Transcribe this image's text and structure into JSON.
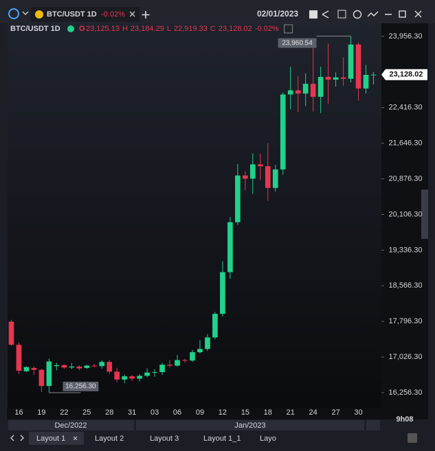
{
  "ui": {
    "tab_title": "BTC/USDT 1D",
    "tab_change": "-0.02%",
    "date": "02/01/2023",
    "time": "9h08",
    "months": [
      "Dec/2022",
      "Jan/2023"
    ],
    "layouts": [
      "Layout 1",
      "Layout 2",
      "Layout 3",
      "Layout 1_1",
      "Layo"
    ]
  },
  "legend": {
    "symbol": "BTC/USDT 1D",
    "o_key": "O",
    "o": "23,125.13",
    "h_key": "H",
    "h": "23,184.29",
    "l_key": "L",
    "l": "22,919.33",
    "c_key": "C",
    "c": "23,128.02",
    "change": "-0.02%"
  },
  "chart_data": {
    "type": "candlestick",
    "categories": [
      null,
      "16",
      null,
      null,
      "19",
      null,
      null,
      "22",
      null,
      null,
      "25",
      null,
      null,
      "28",
      null,
      null,
      "31",
      null,
      null,
      "03",
      null,
      null,
      "06",
      null,
      null,
      "09",
      null,
      null,
      "12",
      null,
      null,
      "15",
      null,
      null,
      "18",
      null,
      null,
      "21",
      null,
      null,
      "24",
      null,
      null,
      "27",
      null,
      null,
      "30",
      null,
      null
    ],
    "open": [
      17790,
      17290,
      16720,
      16790,
      16750,
      16400,
      16830,
      16850,
      16800,
      16820,
      16790,
      16840,
      16830,
      16920,
      16710,
      16540,
      16610,
      16560,
      16620,
      16690,
      16700,
      16860,
      16840,
      16960,
      16950,
      17130,
      17200,
      17450,
      17960,
      18860,
      19940,
      20950,
      20880,
      21190,
      21150,
      20680,
      21080,
      22700,
      22790,
      22720,
      22930,
      22650,
      23080,
      23020,
      23070,
      23040,
      23780,
      22830,
      23125.13
    ],
    "high": [
      17830,
      17340,
      16820,
      16830,
      16770,
      16990,
      16900,
      16870,
      16900,
      16850,
      16860,
      16880,
      16960,
      16960,
      16790,
      16650,
      16640,
      16660,
      16780,
      16760,
      16900,
      16960,
      17070,
      16990,
      17180,
      17390,
      17520,
      18000,
      19100,
      20050,
      21200,
      21040,
      21430,
      21420,
      21650,
      21180,
      22740,
      23300,
      23100,
      23160,
      23820,
      23300,
      23800,
      23180,
      23500,
      23960.54,
      23820,
      23340,
      23184.29
    ],
    "low": [
      17270,
      16660,
      16700,
      16640,
      16270,
      16256.3,
      16740,
      16770,
      16760,
      16740,
      16770,
      16800,
      16780,
      16660,
      16480,
      16460,
      16510,
      16500,
      16590,
      16600,
      16640,
      16800,
      16820,
      16900,
      16920,
      17100,
      17160,
      17410,
      17900,
      18720,
      19880,
      20630,
      20550,
      20850,
      20400,
      20600,
      20970,
      22380,
      22320,
      22450,
      22330,
      22300,
      22500,
      22870,
      22890,
      22960,
      22570,
      22720,
      22919.33
    ],
    "close": [
      17290,
      16730,
      16810,
      16750,
      16400,
      16930,
      16850,
      16800,
      16820,
      16780,
      16840,
      16830,
      16920,
      16710,
      16540,
      16610,
      16560,
      16620,
      16690,
      16700,
      16860,
      16840,
      16960,
      16950,
      17130,
      17200,
      17450,
      17960,
      18860,
      19940,
      20950,
      20880,
      21190,
      21150,
      20680,
      21080,
      22700,
      22790,
      22720,
      22930,
      22650,
      23080,
      23020,
      23070,
      23040,
      23780,
      22830,
      23125.13,
      23128.02
    ],
    "up_color": "#22d18b",
    "down_color": "#e5364f",
    "ylim": [
      15915,
      24208
    ],
    "yticks": [
      {
        "value": 16256.3,
        "label": "16,256.30"
      },
      {
        "value": 17026.3,
        "label": "17,026.30"
      },
      {
        "value": 17796.3,
        "label": "17,796.30"
      },
      {
        "value": 18566.3,
        "label": "18,566.30"
      },
      {
        "value": 19336.3,
        "label": "19,336.30"
      },
      {
        "value": 20106.3,
        "label": "20,106.30"
      },
      {
        "value": 20876.3,
        "label": "20,876.30"
      },
      {
        "value": 21646.3,
        "label": "21,646.30"
      },
      {
        "value": 22416.3,
        "label": "22,416.30"
      },
      {
        "value": 23956.3,
        "label": "23,956.30"
      }
    ],
    "last_label": "23,128.02",
    "max_label": "23,960.54",
    "min_label": "16,256.30"
  }
}
